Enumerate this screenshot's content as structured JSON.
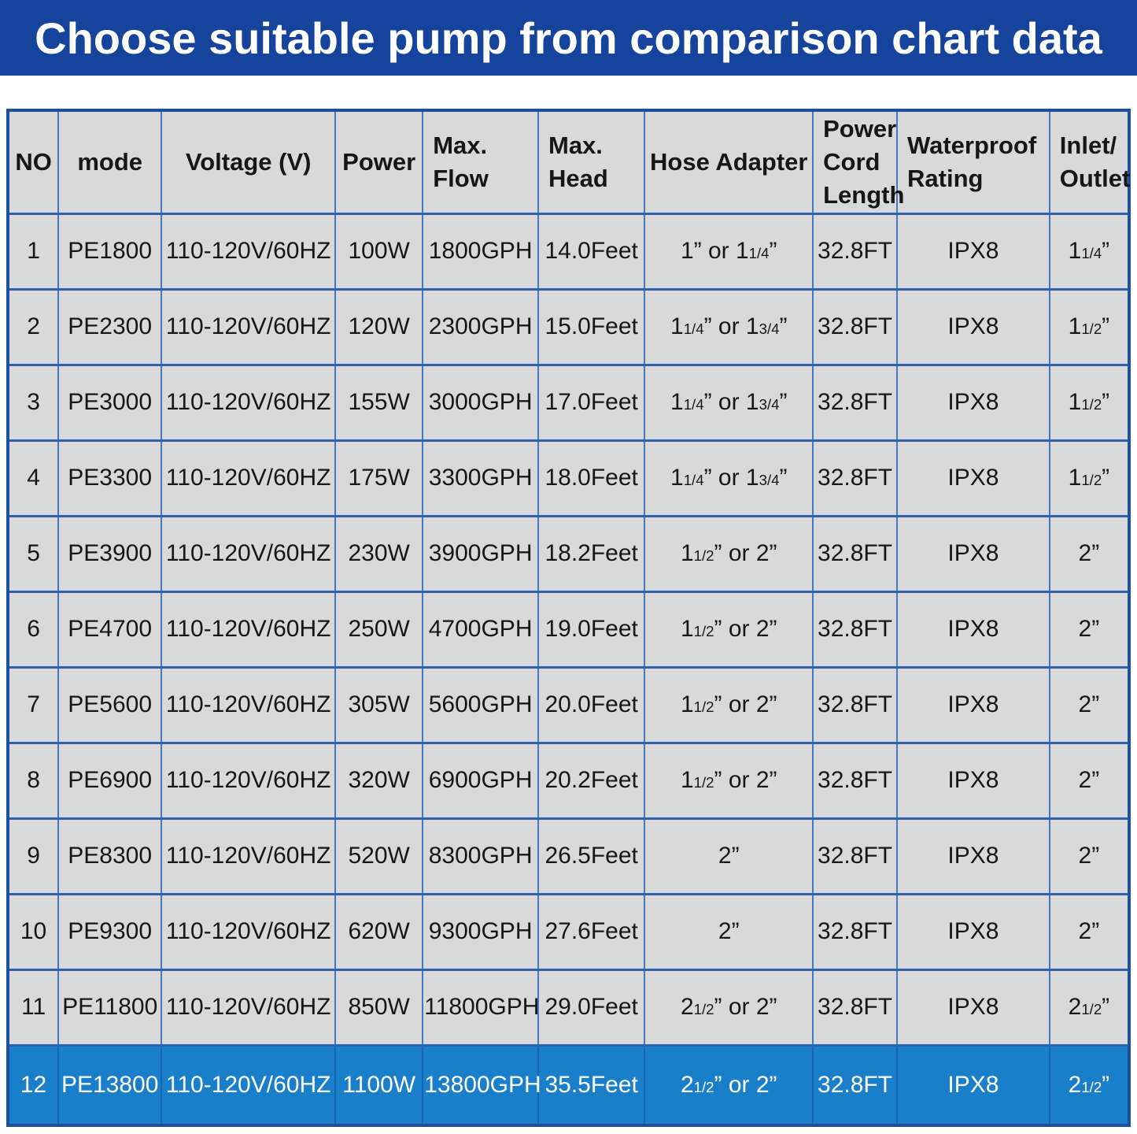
{
  "banner": {
    "title": "Choose suitable pump from comparison chart data",
    "bg_color": "#16449c",
    "text_color": "#ffffff"
  },
  "colors": {
    "cell_bg": "#d9d9d9",
    "cell_text": "#161616",
    "grid_border": "#4379bd",
    "outer_border": "#1c4f9c",
    "highlight_bg": "#1a7fca",
    "highlight_text": "#ffffff"
  },
  "chart_data": {
    "type": "table",
    "title": "Choose suitable pump from comparison chart data",
    "highlight_row": 12,
    "columns": [
      "NO",
      "mode",
      "Voltage (V)",
      "Power",
      "Max.\nFlow",
      "Max.\nHead",
      "Hose Adapter",
      "Power\nCord\nLength",
      "Waterproof\nRating",
      "Inlet/\nOutlet"
    ],
    "rows": [
      [
        "1",
        "PE1800",
        "110-120V/60HZ",
        "100W",
        "1800GPH",
        "14.0Feet",
        "1” or 1 1/4”",
        "32.8FT",
        "IPX8",
        "1 1/4”"
      ],
      [
        "2",
        "PE2300",
        "110-120V/60HZ",
        "120W",
        "2300GPH",
        "15.0Feet",
        "1 1/4” or 1 3/4”",
        "32.8FT",
        "IPX8",
        "1 1/2”"
      ],
      [
        "3",
        "PE3000",
        "110-120V/60HZ",
        "155W",
        "3000GPH",
        "17.0Feet",
        "1 1/4” or 1 3/4”",
        "32.8FT",
        "IPX8",
        "1 1/2”"
      ],
      [
        "4",
        "PE3300",
        "110-120V/60HZ",
        "175W",
        "3300GPH",
        "18.0Feet",
        "1 1/4” or 1 3/4”",
        "32.8FT",
        "IPX8",
        "1 1/2”"
      ],
      [
        "5",
        "PE3900",
        "110-120V/60HZ",
        "230W",
        "3900GPH",
        "18.2Feet",
        "1 1/2” or 2”",
        "32.8FT",
        "IPX8",
        "2”"
      ],
      [
        "6",
        "PE4700",
        "110-120V/60HZ",
        "250W",
        "4700GPH",
        "19.0Feet",
        "1 1/2” or 2”",
        "32.8FT",
        "IPX8",
        "2”"
      ],
      [
        "7",
        "PE5600",
        "110-120V/60HZ",
        "305W",
        "5600GPH",
        "20.0Feet",
        "1 1/2” or 2”",
        "32.8FT",
        "IPX8",
        "2”"
      ],
      [
        "8",
        "PE6900",
        "110-120V/60HZ",
        "320W",
        "6900GPH",
        "20.2Feet",
        "1 1/2” or 2”",
        "32.8FT",
        "IPX8",
        "2”"
      ],
      [
        "9",
        "PE8300",
        "110-120V/60HZ",
        "520W",
        "8300GPH",
        "26.5Feet",
        "2”",
        "32.8FT",
        "IPX8",
        "2”"
      ],
      [
        "10",
        "PE9300",
        "110-120V/60HZ",
        "620W",
        "9300GPH",
        "27.6Feet",
        "2”",
        "32.8FT",
        "IPX8",
        "2”"
      ],
      [
        "11",
        "PE11800",
        "110-120V/60HZ",
        "850W",
        "11800GPH",
        "29.0Feet",
        "2 1/2” or 2”",
        "32.8FT",
        "IPX8",
        "2 1/2”"
      ],
      [
        "12",
        "PE13800",
        "110-120V/60HZ",
        "1100W",
        "13800GPH",
        "35.5Feet",
        "2 1/2” or 2”",
        "32.8FT",
        "IPX8",
        "2 1/2”"
      ]
    ]
  }
}
